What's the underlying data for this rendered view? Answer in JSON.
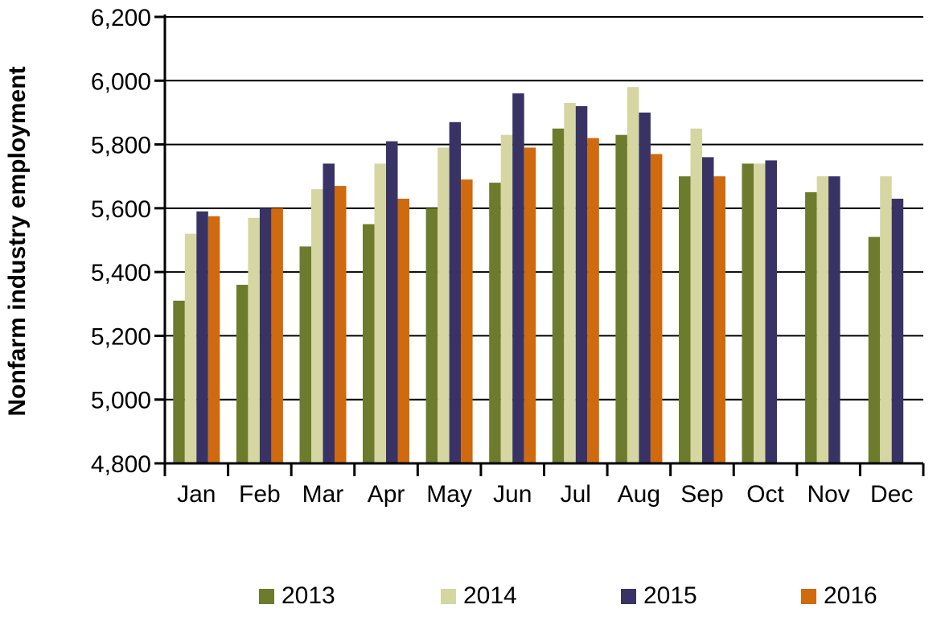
{
  "chart_data": {
    "type": "bar",
    "title": "",
    "ylabel": "Nonfarm industry employment",
    "xlabel": "",
    "categories": [
      "Jan",
      "Feb",
      "Mar",
      "Apr",
      "May",
      "Jun",
      "Jul",
      "Aug",
      "Sep",
      "Oct",
      "Nov",
      "Dec"
    ],
    "series": [
      {
        "name": "2013",
        "color": "#6D7B2C",
        "values": [
          5310,
          5360,
          5480,
          5550,
          5600,
          5680,
          5850,
          5830,
          5700,
          5740,
          5650,
          5510
        ]
      },
      {
        "name": "2014",
        "color": "#D5D6A2",
        "values": [
          5520,
          5570,
          5660,
          5740,
          5790,
          5830,
          5930,
          5980,
          5850,
          5740,
          5700,
          5700
        ]
      },
      {
        "name": "2015",
        "color": "#393365",
        "values": [
          5590,
          5600,
          5740,
          5810,
          5870,
          5960,
          5920,
          5900,
          5760,
          5750,
          5700,
          5630
        ]
      },
      {
        "name": "2016",
        "color": "#CF6A0E",
        "values": [
          5575,
          5600,
          5670,
          5630,
          5690,
          5790,
          5820,
          5770,
          5700,
          null,
          null,
          null
        ]
      }
    ],
    "ylim": [
      4800,
      6200
    ],
    "ytick_step": 200,
    "ytick_labels": [
      "4,800",
      "5,000",
      "5,200",
      "5,400",
      "5,600",
      "5,800",
      "6,000",
      "6,200"
    ],
    "grid": true,
    "gridline_color": "#000000",
    "axis_color": "#000000",
    "legend_position": "bottom"
  }
}
